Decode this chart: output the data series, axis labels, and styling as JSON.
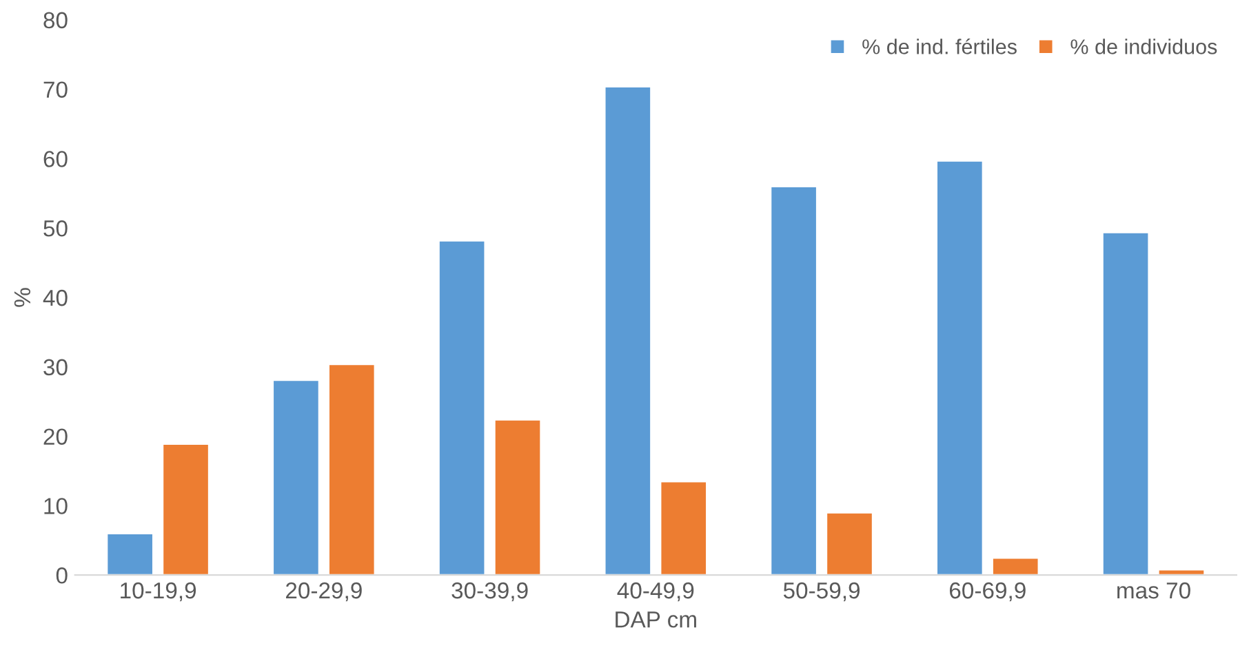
{
  "chart_data": {
    "type": "bar",
    "xlabel": "DAP cm",
    "ylabel": "%",
    "categories": [
      "10-19,9",
      "20-29,9",
      "30-39,9",
      "40-49,9",
      "50-59,9",
      "60-69,9",
      "mas 70"
    ],
    "series": [
      {
        "name": "% de ind. fértiles",
        "color": "#5b9bd5",
        "values": [
          6,
          28.1,
          48.2,
          70.4,
          56,
          59.7,
          49.4
        ]
      },
      {
        "name": "% de individuos",
        "color": "#ed7d31",
        "values": [
          18.9,
          30.4,
          22.4,
          13.5,
          9,
          2.5,
          0.8
        ]
      }
    ],
    "ylim": [
      0,
      80
    ],
    "yticks": [
      0,
      10,
      20,
      30,
      40,
      50,
      60,
      70,
      80
    ],
    "grid": false,
    "legend": "top right"
  }
}
